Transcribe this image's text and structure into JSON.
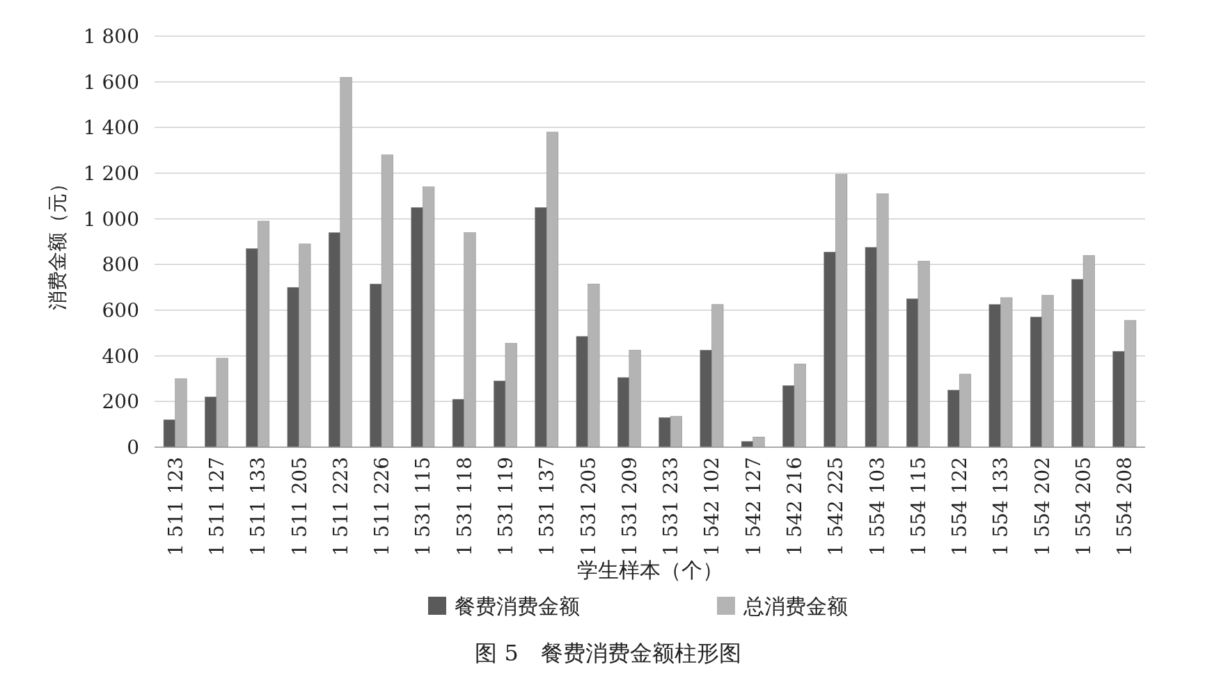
{
  "chart_data": {
    "type": "bar",
    "title": "图 5　餐费消费金额柱形图",
    "xlabel": "学生样本（个）",
    "ylabel": "消费金额（元）",
    "categories": [
      "1 511 123",
      "1 511 127",
      "1 511 133",
      "1 511 205",
      "1 511 223",
      "1 511 226",
      "1 531 115",
      "1 531 118",
      "1 531 119",
      "1 531 137",
      "1 531 205",
      "1 531 209",
      "1 531 233",
      "1 542 102",
      "1 542 127",
      "1 542 216",
      "1 542 225",
      "1 554 103",
      "1 554 115",
      "1 554 122",
      "1 554 133",
      "1 554 202",
      "1 554 205",
      "1 554 208"
    ],
    "series": [
      {
        "name": "餐费消费金额",
        "color": "#5a5a5a",
        "values": [
          120,
          220,
          870,
          700,
          940,
          715,
          1050,
          210,
          290,
          1050,
          485,
          305,
          130,
          425,
          25,
          270,
          855,
          875,
          650,
          250,
          625,
          570,
          735,
          420
        ]
      },
      {
        "name": "总消费金额",
        "color": "#b4b4b4",
        "values": [
          300,
          390,
          990,
          890,
          1620,
          1280,
          1140,
          940,
          455,
          1380,
          715,
          425,
          135,
          625,
          45,
          365,
          1195,
          1110,
          815,
          320,
          655,
          665,
          840,
          555
        ]
      }
    ],
    "ylim": [
      0,
      1800
    ],
    "yticks": [
      0,
      200,
      400,
      600,
      800,
      {
        "value": 1000,
        "label": "1 000"
      },
      {
        "value": 1200,
        "label": "1 200"
      },
      {
        "value": 1400,
        "label": "1 400"
      },
      {
        "value": 1600,
        "label": "1 600"
      },
      {
        "value": 1800,
        "label": "1 800"
      }
    ],
    "grid": "y",
    "legend": "bottom"
  }
}
